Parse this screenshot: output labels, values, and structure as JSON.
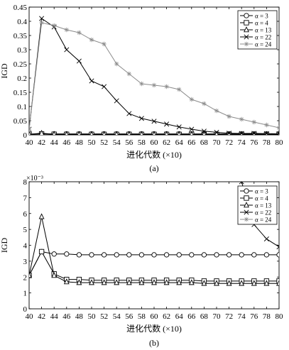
{
  "chart_data": [
    {
      "type": "line",
      "panel_label": "(a)",
      "xlabel": "进化代数 (×10)",
      "ylabel": "IGD",
      "scale_note": "",
      "xlim": [
        40,
        80
      ],
      "ylim": [
        0,
        0.45
      ],
      "xticks": [
        "40",
        "42",
        "44",
        "46",
        "48",
        "50",
        "52",
        "54",
        "56",
        "58",
        "60",
        "62",
        "64",
        "66",
        "68",
        "70",
        "72",
        "74",
        "76",
        "78",
        "80"
      ],
      "yticks": [
        "0",
        "0.05",
        "0.1",
        "0.15",
        "0.2",
        "0.25",
        "0.3",
        "0.35",
        "0.4",
        "0.45"
      ],
      "legend_position": "top-right",
      "x": [
        40,
        42,
        44,
        46,
        48,
        50,
        52,
        54,
        56,
        58,
        60,
        62,
        64,
        66,
        68,
        70,
        72,
        74,
        76,
        78,
        80
      ],
      "series": [
        {
          "name": "α = 3",
          "marker": "circle",
          "color": "#000000",
          "values": [
            0.0021,
            0.0036,
            0.0035,
            0.0034,
            0.0034,
            0.0034,
            0.0034,
            0.0034,
            0.0034,
            0.0034,
            0.0034,
            0.0034,
            0.0034,
            0.0034,
            0.0034,
            0.0034,
            0.0034,
            0.0034,
            0.0034,
            0.0034,
            0.0034
          ]
        },
        {
          "name": "α = 4",
          "marker": "square",
          "color": "#000000",
          "values": [
            0.0021,
            0.0036,
            0.0022,
            0.0019,
            0.0018,
            0.0018,
            0.0018,
            0.0018,
            0.0018,
            0.0018,
            0.0018,
            0.0018,
            0.0018,
            0.0018,
            0.0018,
            0.0018,
            0.0018,
            0.0018,
            0.0018,
            0.0018,
            0.0018
          ]
        },
        {
          "name": "α = 13",
          "marker": "triangle",
          "color": "#000000",
          "values": [
            0.0021,
            0.0058,
            0.0021,
            0.0017,
            0.0017,
            0.0017,
            0.0017,
            0.0017,
            0.0017,
            0.0017,
            0.0017,
            0.0017,
            0.0017,
            0.0017,
            0.0017,
            0.0017,
            0.0017,
            0.0017,
            0.0017,
            0.0017,
            0.0017
          ]
        },
        {
          "name": "α = 22",
          "marker": "x",
          "color": "#000000",
          "values": [
            0.02,
            0.41,
            0.38,
            0.3,
            0.26,
            0.19,
            0.17,
            0.12,
            0.075,
            0.058,
            0.048,
            0.038,
            0.028,
            0.02,
            0.013,
            0.009,
            0.006,
            0.005,
            0.0053,
            0.0044,
            0.0039
          ]
        },
        {
          "name": "α = 24",
          "marker": "asterisk",
          "color": "#8c8c8c",
          "values": [
            0.02,
            0.395,
            0.385,
            0.37,
            0.36,
            0.335,
            0.32,
            0.25,
            0.215,
            0.18,
            0.175,
            0.17,
            0.16,
            0.125,
            0.11,
            0.085,
            0.065,
            0.055,
            0.045,
            0.035,
            0.025
          ]
        }
      ]
    },
    {
      "type": "line",
      "panel_label": "(b)",
      "xlabel": "进化代数 (×10)",
      "ylabel": "IGD",
      "scale_note": "×10⁻³",
      "xlim": [
        40,
        80
      ],
      "ylim": [
        0,
        8
      ],
      "xticks": [
        "40",
        "42",
        "44",
        "46",
        "48",
        "50",
        "52",
        "54",
        "56",
        "58",
        "60",
        "62",
        "64",
        "66",
        "68",
        "70",
        "72",
        "74",
        "76",
        "78",
        "80"
      ],
      "yticks": [
        "0",
        "1",
        "2",
        "3",
        "4",
        "5",
        "6",
        "7",
        "8"
      ],
      "legend_position": "top-right",
      "x": [
        40,
        42,
        44,
        46,
        48,
        50,
        52,
        54,
        56,
        58,
        60,
        62,
        64,
        66,
        68,
        70,
        72,
        74,
        76,
        78,
        80
      ],
      "series": [
        {
          "name": "α = 3",
          "marker": "circle",
          "color": "#000000",
          "values": [
            2.1,
            3.6,
            3.45,
            3.45,
            3.4,
            3.4,
            3.4,
            3.4,
            3.4,
            3.4,
            3.4,
            3.4,
            3.4,
            3.4,
            3.4,
            3.4,
            3.4,
            3.4,
            3.4,
            3.4,
            3.4
          ]
        },
        {
          "name": "α = 4",
          "marker": "square",
          "color": "#000000",
          "values": [
            2.1,
            3.6,
            2.2,
            1.85,
            1.85,
            1.8,
            1.8,
            1.8,
            1.8,
            1.8,
            1.8,
            1.8,
            1.8,
            1.8,
            1.75,
            1.75,
            1.75,
            1.75,
            1.75,
            1.75,
            1.75
          ]
        },
        {
          "name": "α = 13",
          "marker": "triangle",
          "color": "#000000",
          "values": [
            2.1,
            5.8,
            2.1,
            1.7,
            1.65,
            1.65,
            1.65,
            1.65,
            1.65,
            1.65,
            1.65,
            1.65,
            1.65,
            1.65,
            1.6,
            1.6,
            1.6,
            1.6,
            1.6,
            1.6,
            1.6
          ]
        },
        {
          "name": "α = 22",
          "marker": "x",
          "color": "#000000",
          "values": [
            null,
            null,
            null,
            null,
            null,
            null,
            null,
            null,
            null,
            null,
            null,
            null,
            null,
            null,
            null,
            null,
            null,
            8.0,
            5.3,
            4.4,
            3.9
          ]
        },
        {
          "name": "α = 24",
          "marker": "asterisk",
          "color": "#8c8c8c",
          "values": [
            null,
            null,
            null,
            null,
            null,
            null,
            null,
            null,
            null,
            null,
            null,
            null,
            null,
            null,
            null,
            null,
            null,
            null,
            null,
            null,
            null
          ]
        }
      ]
    }
  ]
}
